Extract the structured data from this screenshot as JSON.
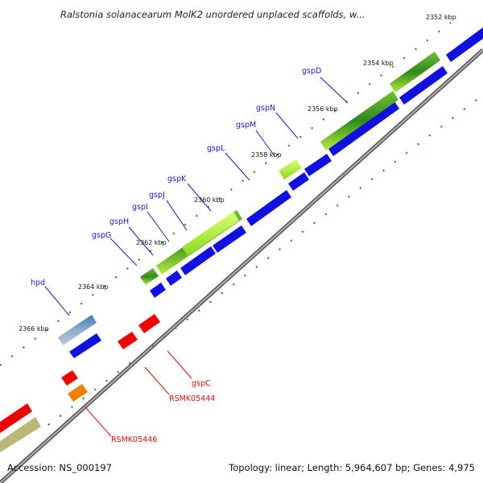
{
  "title": "Ralstonia solanacearum MolK2 unordered unplaced scaffolds, w...",
  "scale_labels": [
    "2352 kbp",
    "2354 kbp",
    "2356 kbp",
    "2358 kbp",
    "2360 kbp",
    "2362 kbp",
    "2364 kbp",
    "2366 kbp"
  ],
  "genes_top": [
    "gspD",
    "gspN",
    "gspM",
    "gspL",
    "gspK",
    "gspJ",
    "gspI",
    "gspH",
    "gspG",
    "hpd"
  ],
  "genes_bottom": [
    "gspC",
    "RSMK05444",
    "RSMK05446"
  ],
  "footer": {
    "accession": "Accession: NS_000197",
    "stats": "Topology: linear; Length: 5,964,607 bp; Genes: 4,975"
  },
  "colors": {
    "cds_blue": "#1010e0",
    "gene_green_dark": "#2e8a1a",
    "gene_green_light": "#a8e830",
    "rna_red": "#ee0000",
    "orange": "#f08000",
    "steelblue": "#4a7ab0",
    "olive": "#b8b878",
    "backbone": "#888888",
    "tick_green": "#2a8a2a",
    "label_blue": "#1a1ab8",
    "label_red": "#cc1111"
  }
}
